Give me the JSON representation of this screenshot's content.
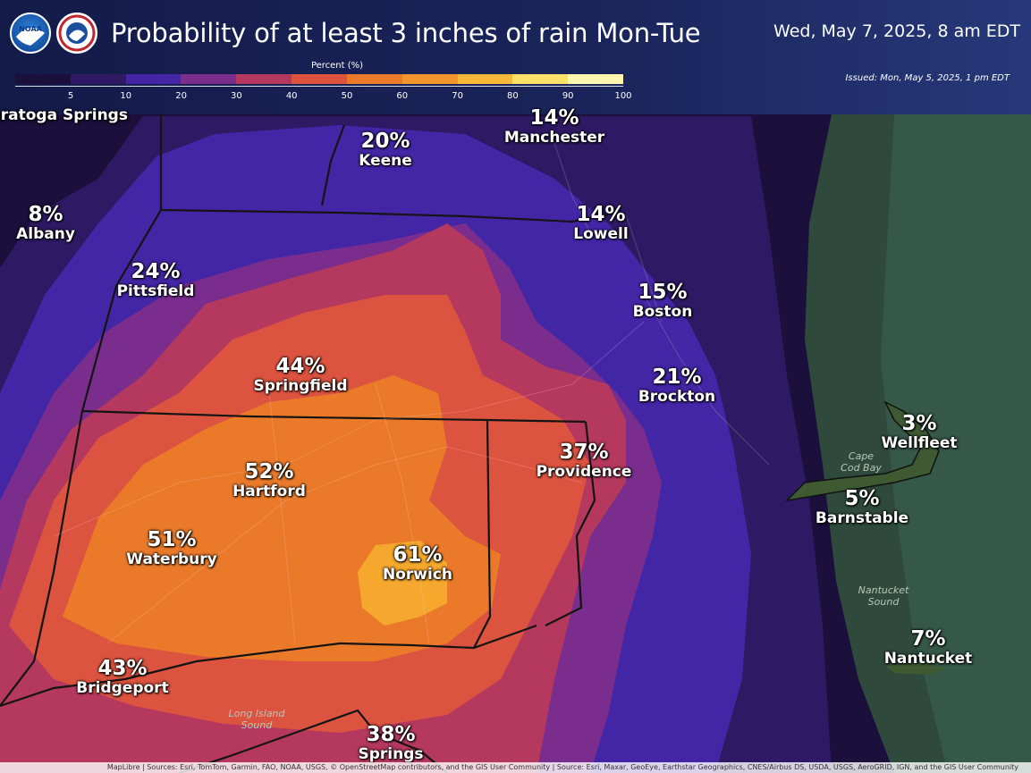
{
  "header": {
    "title": "Probability of at least 3 inches of rain Mon-Tue",
    "valid_time": "Wed, May 7, 2025, 8 am EDT",
    "issued": "Issued: Mon, May 5, 2025, 1 pm EDT"
  },
  "legend": {
    "title": "Percent (%)",
    "ticks": [
      "5",
      "10",
      "20",
      "30",
      "40",
      "50",
      "60",
      "70",
      "80",
      "90",
      "100"
    ],
    "colors": [
      "#1b0f3b",
      "#2e1a64",
      "#4326a6",
      "#7a2d8c",
      "#b5385f",
      "#dc5340",
      "#ea7a2a",
      "#f2962b",
      "#f7b83a",
      "#fbe06a",
      "#fff6b0"
    ]
  },
  "cities": [
    {
      "name": "Saratoga Springs",
      "value": "",
      "partial": true
    },
    {
      "name": "Keene",
      "value": "20%"
    },
    {
      "name": "Manchester",
      "value": "14%"
    },
    {
      "name": "Albany",
      "value": "8%"
    },
    {
      "name": "Lowell",
      "value": "14%"
    },
    {
      "name": "Pittsfield",
      "value": "24%"
    },
    {
      "name": "Boston",
      "value": "15%"
    },
    {
      "name": "Springfield",
      "value": "44%"
    },
    {
      "name": "Brockton",
      "value": "21%"
    },
    {
      "name": "Wellfleet",
      "value": "3%"
    },
    {
      "name": "Hartford",
      "value": "52%"
    },
    {
      "name": "Providence",
      "value": "37%"
    },
    {
      "name": "Barnstable",
      "value": "5%"
    },
    {
      "name": "Waterbury",
      "value": "51%"
    },
    {
      "name": "Norwich",
      "value": "61%"
    },
    {
      "name": "Nantucket",
      "value": "7%"
    },
    {
      "name": "Bridgeport",
      "value": "43%"
    },
    {
      "name": "Springs",
      "value": "38%"
    }
  ],
  "water_labels": {
    "cape_cod_bay": "Cape\nCod Bay",
    "nantucket_sound": "Nantucket\nSound",
    "long_island_sound": "Long Island\nSound"
  },
  "attribution": "MapLibre | Sources: Esri, TomTom, Garmin, FAO, NOAA, USGS, © OpenStreetMap contributors, and the GIS User Community | Source: Esri, Maxar, GeoEye, Earthstar Geographics, CNES/Airbus DS, USDA, USGS, AeroGRID, IGN, and the GIS User Community"
}
